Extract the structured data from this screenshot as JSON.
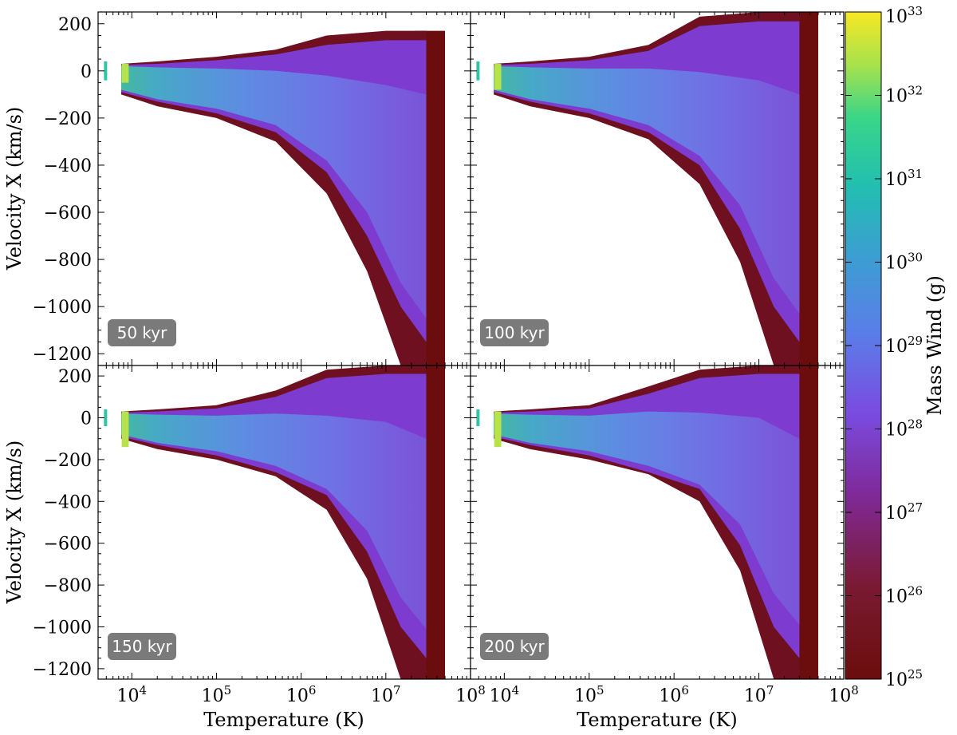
{
  "chart_data": {
    "type": "heatmap",
    "layout": "2x2 panels, shared axes",
    "xlabel": "Temperature  (K)",
    "ylabel": "Velocity X  (km/s)",
    "x_scale": "log",
    "xlim": [
      4000,
      100000000
    ],
    "x_ticks": [
      {
        "value": 10000,
        "base": "10",
        "exp": "4"
      },
      {
        "value": 100000,
        "base": "10",
        "exp": "5"
      },
      {
        "value": 1000000,
        "base": "10",
        "exp": "6"
      },
      {
        "value": 10000000,
        "base": "10",
        "exp": "7"
      },
      {
        "value": 100000000,
        "base": "10",
        "exp": "8"
      }
    ],
    "ylim": [
      -1250,
      250
    ],
    "y_ticks": [
      {
        "value": 200,
        "label": "200"
      },
      {
        "value": 0,
        "label": "0"
      },
      {
        "value": -200,
        "label": "−200"
      },
      {
        "value": -400,
        "label": "−400"
      },
      {
        "value": -600,
        "label": "−600"
      },
      {
        "value": -800,
        "label": "−800"
      },
      {
        "value": -1000,
        "label": "−1000"
      },
      {
        "value": -1200,
        "label": "−1200"
      }
    ],
    "colorbar": {
      "label": "Mass Wind  (g)",
      "scale": "log",
      "colormap": "viridis-like (dark red at minimum)",
      "range": [
        1e+25,
        1e+33
      ],
      "ticks": [
        {
          "value": 1e+33,
          "base": "10",
          "exp": "33"
        },
        {
          "value": 1e+32,
          "base": "10",
          "exp": "32"
        },
        {
          "value": 1e+31,
          "base": "10",
          "exp": "31"
        },
        {
          "value": 1e+30,
          "base": "10",
          "exp": "30"
        },
        {
          "value": 1e+29,
          "base": "10",
          "exp": "29"
        },
        {
          "value": 1e+28,
          "base": "10",
          "exp": "28"
        },
        {
          "value": 1e+27,
          "base": "10",
          "exp": "27"
        },
        {
          "value": 1e+26,
          "base": "10",
          "exp": "26"
        },
        {
          "value": 1e+25,
          "base": "10",
          "exp": "25"
        }
      ]
    },
    "panels": [
      {
        "label": "50 kyr",
        "upper_v_max": 170,
        "lower_v_min": -1250,
        "cold_v_range": [
          -50,
          30
        ]
      },
      {
        "label": "100 kyr",
        "upper_v_max": 250,
        "lower_v_min": -1250,
        "cold_v_range": [
          -80,
          30
        ]
      },
      {
        "label": "150 kyr",
        "upper_v_max": 250,
        "lower_v_min": -1250,
        "cold_v_range": [
          -140,
          30
        ]
      },
      {
        "label": "200 kyr",
        "upper_v_max": 250,
        "lower_v_min": -1250,
        "cold_v_range": [
          -140,
          30
        ]
      }
    ]
  }
}
